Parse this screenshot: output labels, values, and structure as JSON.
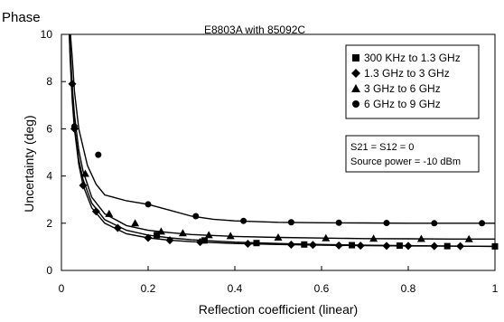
{
  "chart_data": {
    "type": "line",
    "heading": "Phase",
    "title": "E8803A with 85092C",
    "xlabel": "Reflection coefficient (linear)",
    "ylabel": "Uncertainty (deg)",
    "xlim": [
      0,
      1
    ],
    "ylim": [
      0,
      10
    ],
    "x_ticks": [
      "0",
      "0.2",
      "0.4",
      "0.6",
      "0.8",
      "1"
    ],
    "y_ticks": [
      "0",
      "2",
      "4",
      "6",
      "8",
      "10"
    ],
    "x_tick_values": [
      0,
      0.2,
      0.4,
      0.6,
      0.8,
      1
    ],
    "y_tick_values": [
      0,
      2,
      4,
      6,
      8,
      10
    ],
    "grid": false,
    "legend_position": "top-right",
    "note": [
      "S21 = S12 = 0",
      "Source power = -10 dBm"
    ],
    "series": [
      {
        "name": "300 KHz to 1.3 GHz",
        "marker": "square",
        "curve": [
          [
            0.018,
            10.2
          ],
          [
            0.02,
            9.2
          ],
          [
            0.025,
            7.4
          ],
          [
            0.03,
            6.1
          ],
          [
            0.04,
            4.7
          ],
          [
            0.05,
            3.85
          ],
          [
            0.07,
            2.85
          ],
          [
            0.1,
            2.15
          ],
          [
            0.15,
            1.7
          ],
          [
            0.2,
            1.5
          ],
          [
            0.25,
            1.38
          ],
          [
            0.3,
            1.3
          ],
          [
            0.4,
            1.2
          ],
          [
            0.5,
            1.14
          ],
          [
            0.6,
            1.1
          ],
          [
            0.7,
            1.07
          ],
          [
            0.8,
            1.05
          ],
          [
            0.9,
            1.03
          ],
          [
            1.0,
            1.02
          ]
        ],
        "points": [
          [
            0.22,
            1.5
          ],
          [
            0.33,
            1.27
          ],
          [
            0.45,
            1.16
          ],
          [
            0.56,
            1.1
          ],
          [
            0.67,
            1.07
          ],
          [
            0.78,
            1.05
          ],
          [
            0.89,
            1.03
          ],
          [
            1.0,
            1.02
          ]
        ]
      },
      {
        "name": "1.3 GHz to 3 GHz",
        "marker": "diamond",
        "curve": [
          [
            0.018,
            10.2
          ],
          [
            0.02,
            9.0
          ],
          [
            0.025,
            7.2
          ],
          [
            0.03,
            6.0
          ],
          [
            0.04,
            4.5
          ],
          [
            0.05,
            3.6
          ],
          [
            0.07,
            2.65
          ],
          [
            0.1,
            2.0
          ],
          [
            0.15,
            1.55
          ],
          [
            0.2,
            1.38
          ],
          [
            0.25,
            1.28
          ],
          [
            0.3,
            1.22
          ],
          [
            0.4,
            1.14
          ],
          [
            0.5,
            1.1
          ],
          [
            0.6,
            1.07
          ],
          [
            0.7,
            1.05
          ],
          [
            0.8,
            1.04
          ],
          [
            0.9,
            1.03
          ],
          [
            1.0,
            1.02
          ]
        ],
        "points": [
          [
            0.025,
            7.9
          ],
          [
            0.03,
            6.0
          ],
          [
            0.05,
            3.6
          ],
          [
            0.08,
            2.5
          ],
          [
            0.13,
            1.8
          ],
          [
            0.2,
            1.38
          ],
          [
            0.25,
            1.28
          ],
          [
            0.32,
            1.2
          ],
          [
            0.43,
            1.13
          ],
          [
            0.53,
            1.09
          ],
          [
            0.58,
            1.08
          ],
          [
            0.64,
            1.06
          ],
          [
            0.69,
            1.05
          ],
          [
            0.75,
            1.04
          ],
          [
            0.8,
            1.04
          ],
          [
            0.86,
            1.03
          ],
          [
            0.92,
            1.03
          ]
        ]
      },
      {
        "name": "3 GHz to 6 GHz",
        "marker": "triangle",
        "curve": [
          [
            0.018,
            10.2
          ],
          [
            0.02,
            9.5
          ],
          [
            0.025,
            7.8
          ],
          [
            0.03,
            6.6
          ],
          [
            0.04,
            5.1
          ],
          [
            0.05,
            4.2
          ],
          [
            0.07,
            3.1
          ],
          [
            0.1,
            2.4
          ],
          [
            0.15,
            1.9
          ],
          [
            0.2,
            1.7
          ],
          [
            0.25,
            1.6
          ],
          [
            0.3,
            1.52
          ],
          [
            0.4,
            1.44
          ],
          [
            0.5,
            1.4
          ],
          [
            0.6,
            1.37
          ],
          [
            0.7,
            1.35
          ],
          [
            0.8,
            1.34
          ],
          [
            0.9,
            1.33
          ],
          [
            1.0,
            1.33
          ]
        ],
        "points": [
          [
            0.055,
            4.1
          ],
          [
            0.11,
            2.4
          ],
          [
            0.17,
            2.0
          ],
          [
            0.23,
            1.65
          ],
          [
            0.28,
            1.58
          ],
          [
            0.34,
            1.5
          ],
          [
            0.39,
            1.46
          ],
          [
            0.5,
            1.4
          ],
          [
            0.61,
            1.37
          ],
          [
            0.72,
            1.35
          ],
          [
            0.83,
            1.34
          ],
          [
            0.94,
            1.33
          ]
        ]
      },
      {
        "name": "6 GHz to 9 GHz",
        "marker": "circle",
        "curve": [
          [
            0.02,
            10.2
          ],
          [
            0.025,
            9.0
          ],
          [
            0.03,
            7.6
          ],
          [
            0.04,
            6.0
          ],
          [
            0.06,
            4.45
          ],
          [
            0.08,
            3.65
          ],
          [
            0.1,
            3.2
          ],
          [
            0.15,
            2.95
          ],
          [
            0.2,
            2.8
          ],
          [
            0.25,
            2.55
          ],
          [
            0.3,
            2.3
          ],
          [
            0.35,
            2.17
          ],
          [
            0.4,
            2.1
          ],
          [
            0.5,
            2.04
          ],
          [
            0.6,
            2.02
          ],
          [
            0.7,
            2.01
          ],
          [
            0.8,
            2.0
          ],
          [
            0.9,
            2.0
          ],
          [
            1.0,
            2.0
          ]
        ],
        "points": [
          [
            0.03,
            6.1
          ],
          [
            0.085,
            4.9
          ],
          [
            0.2,
            2.8
          ],
          [
            0.31,
            2.3
          ],
          [
            0.42,
            2.1
          ],
          [
            0.53,
            2.04
          ],
          [
            0.64,
            2.02
          ],
          [
            0.75,
            2.01
          ],
          [
            0.86,
            2.0
          ],
          [
            0.97,
            2.0
          ]
        ]
      }
    ]
  }
}
